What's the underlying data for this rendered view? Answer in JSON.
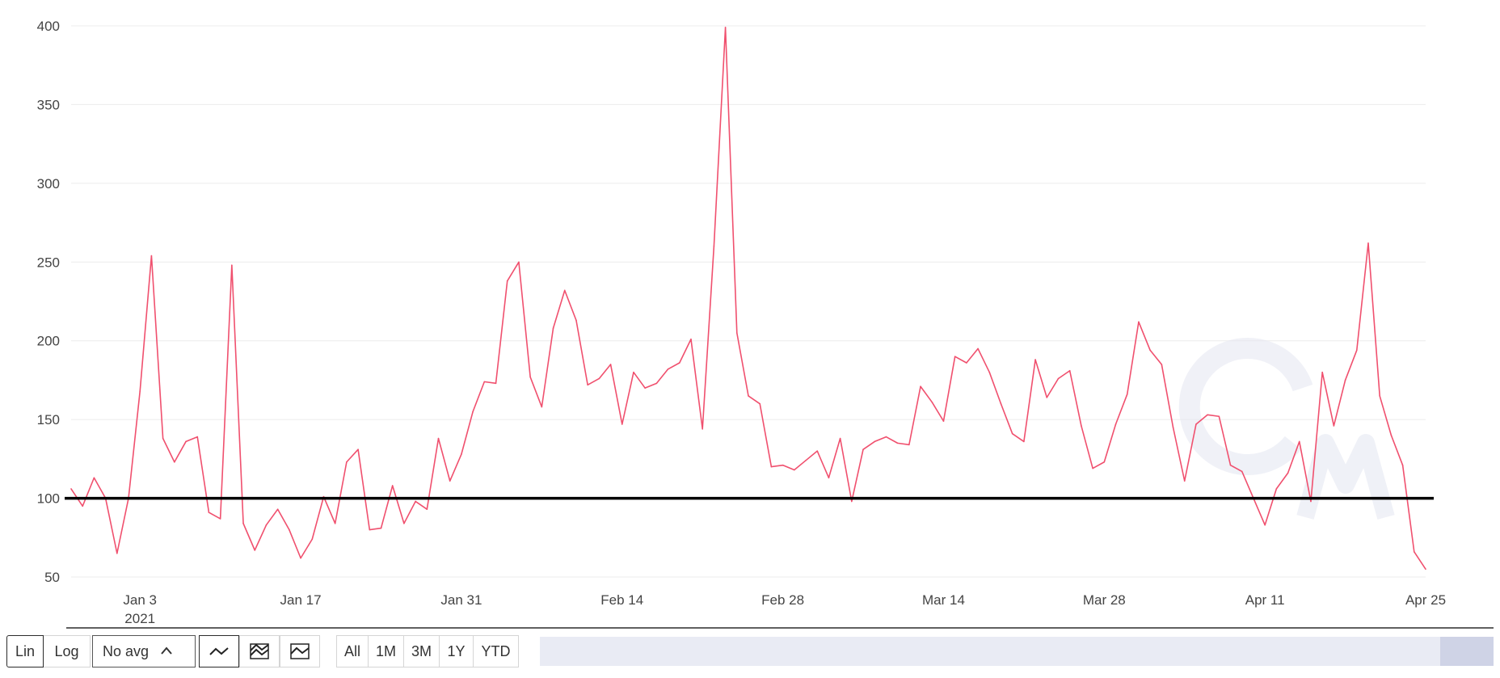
{
  "chart_data": {
    "type": "line",
    "line_color": "#f0506e",
    "reference_line": {
      "value": 100,
      "color": "#000000"
    },
    "ylim": [
      50,
      400
    ],
    "y_ticks": [
      50,
      100,
      150,
      200,
      250,
      300,
      350,
      400
    ],
    "y_tick_labels": [
      "50",
      "100",
      "150",
      "200",
      "250",
      "300",
      "350",
      "400"
    ],
    "x_ticks": [
      {
        "date": "2021-01-03",
        "label": "Jan 3",
        "sublabel": "2021"
      },
      {
        "date": "2021-01-17",
        "label": "Jan 17"
      },
      {
        "date": "2021-01-31",
        "label": "Jan 31"
      },
      {
        "date": "2021-02-14",
        "label": "Feb 14"
      },
      {
        "date": "2021-02-28",
        "label": "Feb 28"
      },
      {
        "date": "2021-03-14",
        "label": "Mar 14"
      },
      {
        "date": "2021-03-28",
        "label": "Mar 28"
      },
      {
        "date": "2021-04-11",
        "label": "Apr 11"
      },
      {
        "date": "2021-04-25",
        "label": "Apr 25"
      }
    ],
    "grid": true,
    "x": [
      "2020-12-28",
      "2020-12-29",
      "2020-12-30",
      "2020-12-31",
      "2021-01-01",
      "2021-01-02",
      "2021-01-03",
      "2021-01-04",
      "2021-01-05",
      "2021-01-06",
      "2021-01-07",
      "2021-01-08",
      "2021-01-09",
      "2021-01-10",
      "2021-01-11",
      "2021-01-12",
      "2021-01-13",
      "2021-01-14",
      "2021-01-15",
      "2021-01-16",
      "2021-01-17",
      "2021-01-18",
      "2021-01-19",
      "2021-01-20",
      "2021-01-21",
      "2021-01-22",
      "2021-01-23",
      "2021-01-24",
      "2021-01-25",
      "2021-01-26",
      "2021-01-27",
      "2021-01-28",
      "2021-01-29",
      "2021-01-30",
      "2021-01-31",
      "2021-02-01",
      "2021-02-02",
      "2021-02-03",
      "2021-02-04",
      "2021-02-05",
      "2021-02-06",
      "2021-02-07",
      "2021-02-08",
      "2021-02-09",
      "2021-02-10",
      "2021-02-11",
      "2021-02-12",
      "2021-02-13",
      "2021-02-14",
      "2021-02-15",
      "2021-02-16",
      "2021-02-17",
      "2021-02-18",
      "2021-02-19",
      "2021-02-20",
      "2021-02-21",
      "2021-02-22",
      "2021-02-23",
      "2021-02-24",
      "2021-02-25",
      "2021-02-26",
      "2021-02-27",
      "2021-02-28",
      "2021-03-01",
      "2021-03-02",
      "2021-03-03",
      "2021-03-04",
      "2021-03-05",
      "2021-03-06",
      "2021-03-07",
      "2021-03-08",
      "2021-03-09",
      "2021-03-10",
      "2021-03-11",
      "2021-03-12",
      "2021-03-13",
      "2021-03-14",
      "2021-03-15",
      "2021-03-16",
      "2021-03-17",
      "2021-03-18",
      "2021-03-19",
      "2021-03-20",
      "2021-03-21",
      "2021-03-22",
      "2021-03-23",
      "2021-03-24",
      "2021-03-25",
      "2021-03-26",
      "2021-03-27",
      "2021-03-28",
      "2021-03-29",
      "2021-03-30",
      "2021-03-31",
      "2021-04-01",
      "2021-04-02",
      "2021-04-03",
      "2021-04-04",
      "2021-04-05",
      "2021-04-06",
      "2021-04-07",
      "2021-04-08",
      "2021-04-09",
      "2021-04-10",
      "2021-04-11",
      "2021-04-12",
      "2021-04-13",
      "2021-04-14",
      "2021-04-15",
      "2021-04-16",
      "2021-04-17",
      "2021-04-18",
      "2021-04-19",
      "2021-04-20",
      "2021-04-21",
      "2021-04-22",
      "2021-04-23",
      "2021-04-24",
      "2021-04-25"
    ],
    "values": [
      106,
      95,
      113,
      100,
      65,
      100,
      168,
      254,
      138,
      123,
      136,
      139,
      91,
      87,
      248,
      84,
      67,
      83,
      93,
      80,
      62,
      74,
      101,
      84,
      123,
      131,
      80,
      81,
      108,
      84,
      98,
      93,
      138,
      111,
      128,
      155,
      174,
      173,
      238,
      250,
      177,
      158,
      208,
      232,
      213,
      172,
      176,
      185,
      147,
      180,
      170,
      173,
      182,
      186,
      201,
      144,
      260,
      399,
      205,
      165,
      160,
      120,
      121,
      118,
      124,
      130,
      113,
      138,
      98,
      131,
      136,
      139,
      135,
      134,
      171,
      161,
      149,
      190,
      186,
      195,
      180,
      160,
      141,
      136,
      188,
      164,
      176,
      181,
      146,
      119,
      123,
      147,
      166,
      212,
      194,
      185,
      145,
      111,
      147,
      153,
      152,
      121,
      117,
      100,
      83,
      106,
      116,
      136,
      98,
      180,
      146,
      175,
      194,
      262,
      165,
      140,
      121,
      66,
      55
    ]
  },
  "controls": {
    "lin_label": "Lin",
    "log_label": "Log",
    "avg_label": "No avg",
    "range_buttons": [
      "All",
      "1M",
      "3M",
      "1Y",
      "YTD"
    ]
  }
}
